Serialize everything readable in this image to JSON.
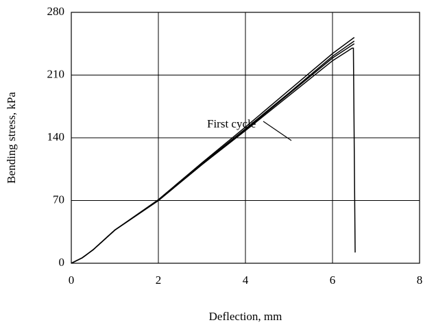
{
  "chart_data": {
    "type": "line",
    "xlabel": "Deflection, mm",
    "ylabel": "Bending stress, kPa",
    "annotation": "First cycle",
    "xlim": [
      0,
      8
    ],
    "xticks": [
      0,
      2,
      4,
      6,
      8
    ],
    "ylim": [
      0,
      280
    ],
    "yticks": [
      0,
      70,
      140,
      210,
      280
    ],
    "grid": true,
    "color": "#000000",
    "series": [
      {
        "x": [
          0,
          0.25,
          0.5,
          1,
          2,
          3,
          4,
          5,
          6,
          6.45,
          6.48,
          6.52
        ],
        "values": [
          0,
          6,
          15,
          37,
          70,
          110,
          148,
          187,
          226,
          240,
          240,
          12
        ]
      },
      {
        "x": [
          0,
          0.25,
          0.5,
          1,
          2,
          3,
          4,
          5,
          6,
          6.5
        ],
        "values": [
          0,
          6,
          15,
          37,
          71,
          112,
          152,
          193,
          234,
          252
        ]
      },
      {
        "x": [
          0,
          0.25,
          0.5,
          1,
          2,
          3,
          4,
          5,
          6,
          6.5
        ],
        "values": [
          0,
          6,
          15,
          37,
          70,
          111,
          150,
          190,
          231,
          248
        ]
      },
      {
        "x": [
          0,
          0.25,
          0.5,
          1,
          2,
          3,
          4,
          5,
          6,
          6.5
        ],
        "values": [
          0,
          6,
          15,
          37,
          70,
          110,
          149,
          189,
          229,
          245
        ]
      }
    ]
  }
}
